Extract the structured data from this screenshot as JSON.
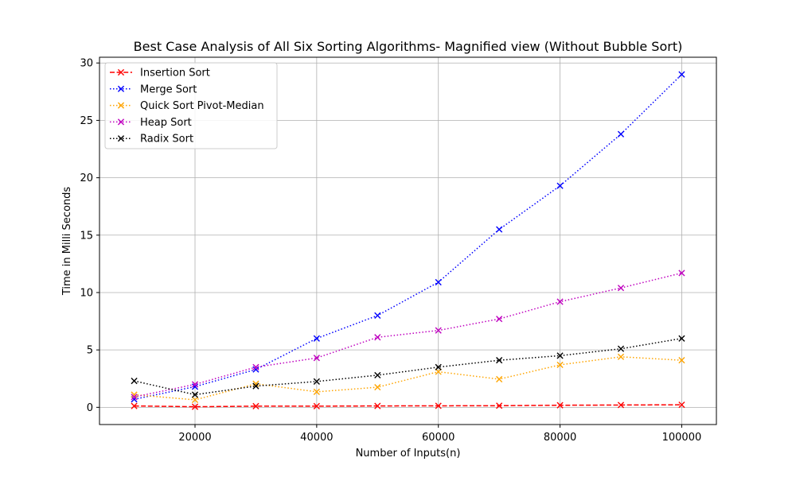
{
  "chart_data": {
    "type": "line",
    "title": "Best Case Analysis of All Six Sorting Algorithms- Magnified view (Without Bubble Sort)",
    "xlabel": "Number of Inputs(n)",
    "ylabel": "Time in Milli Seconds",
    "xlim": [
      4300,
      105700
    ],
    "ylim": [
      -1.5,
      30.5
    ],
    "xticks": [
      20000,
      40000,
      60000,
      80000,
      100000
    ],
    "yticks": [
      0,
      5,
      10,
      15,
      20,
      25,
      30
    ],
    "grid": true,
    "legend_position": "top-left",
    "x": [
      10000,
      20000,
      30000,
      40000,
      50000,
      60000,
      70000,
      80000,
      90000,
      100000
    ],
    "series": [
      {
        "name": "Insertion Sort",
        "color": "#ff0000",
        "linestyle": "dashed",
        "marker": "x",
        "values": [
          0.12,
          0.05,
          0.1,
          0.1,
          0.12,
          0.13,
          0.14,
          0.18,
          0.2,
          0.22
        ]
      },
      {
        "name": "Merge Sort",
        "color": "#0000ff",
        "linestyle": "dotted",
        "marker": "x",
        "values": [
          0.7,
          1.8,
          3.3,
          6.0,
          8.0,
          10.9,
          15.5,
          19.3,
          23.8,
          29.0
        ]
      },
      {
        "name": "Quick Sort Pivot-Median",
        "color": "#ffa500",
        "linestyle": "dotted",
        "marker": "x",
        "values": [
          1.1,
          0.65,
          2.05,
          1.35,
          1.75,
          3.1,
          2.45,
          3.7,
          4.4,
          4.1
        ]
      },
      {
        "name": "Heap Sort",
        "color": "#bf00bf",
        "linestyle": "dotted",
        "marker": "x",
        "values": [
          0.9,
          2.0,
          3.5,
          4.3,
          6.1,
          6.7,
          7.7,
          9.2,
          10.4,
          11.7
        ]
      },
      {
        "name": "Radix Sort",
        "color": "#000000",
        "linestyle": "dotted",
        "marker": "x",
        "values": [
          2.3,
          1.1,
          1.85,
          2.25,
          2.8,
          3.5,
          4.1,
          4.5,
          5.1,
          6.0
        ]
      }
    ]
  }
}
